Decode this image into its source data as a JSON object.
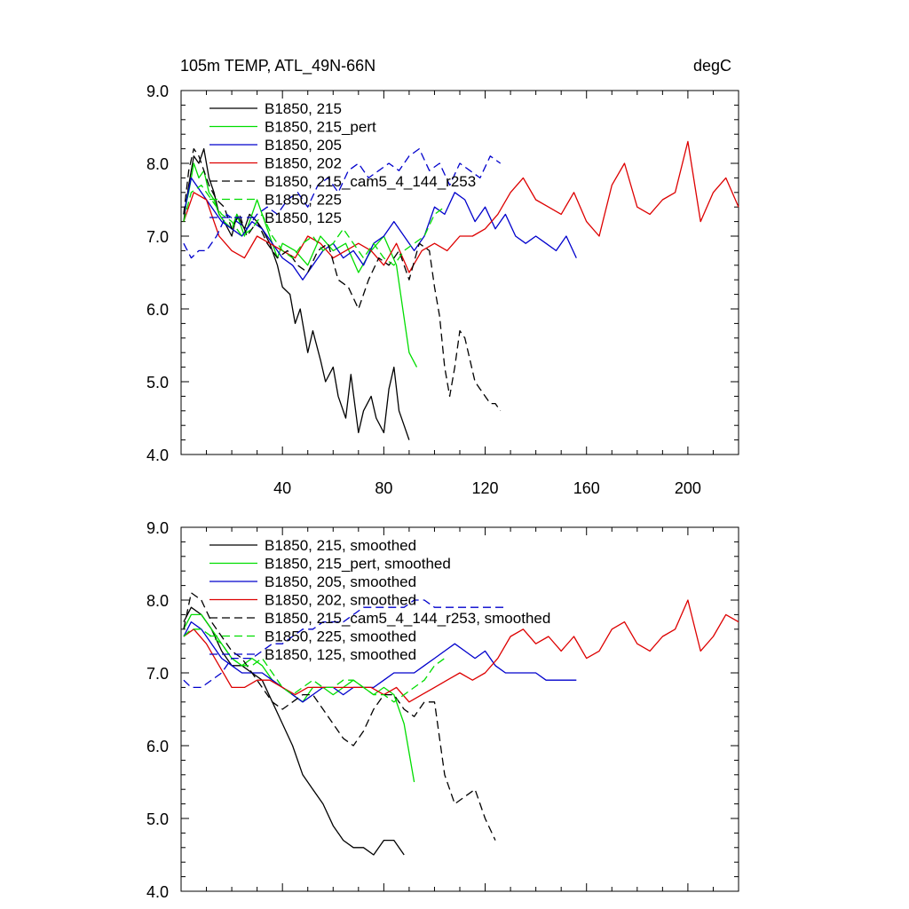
{
  "chart_data": [
    {
      "type": "line",
      "title": "105m TEMP, ATL_49N-66N",
      "units": "degC",
      "xlim": [
        0,
        220
      ],
      "ylim": [
        4.0,
        9.0
      ],
      "x_tick_labels": [
        "40",
        "80",
        "120",
        "160",
        "200"
      ],
      "y_tick_labels": [
        "4.0",
        "5.0",
        "6.0",
        "7.0",
        "8.0",
        "9.0"
      ],
      "series": [
        {
          "name": "B1850, 215",
          "color": "#000000",
          "dash": "solid",
          "x": [
            1,
            3,
            5,
            7,
            9,
            11,
            13,
            15,
            17,
            20,
            22,
            25,
            27,
            30,
            32,
            35,
            38,
            40,
            43,
            45,
            47,
            50,
            52,
            55,
            57,
            60,
            62,
            65,
            67,
            70,
            72,
            75,
            77,
            80,
            82,
            84,
            86,
            88,
            90
          ],
          "y": [
            7.2,
            7.7,
            8.1,
            8.0,
            8.2,
            7.8,
            7.6,
            7.3,
            7.2,
            7.0,
            7.3,
            7.1,
            7.3,
            7.2,
            7.1,
            6.9,
            6.6,
            6.3,
            6.2,
            5.8,
            6.0,
            5.4,
            5.7,
            5.3,
            5.0,
            5.2,
            4.8,
            4.5,
            5.1,
            4.3,
            4.6,
            4.8,
            4.5,
            4.3,
            4.9,
            5.2,
            4.6,
            4.4,
            4.2
          ]
        },
        {
          "name": "B1850, 215_pert",
          "color": "#00dd00",
          "dash": "solid",
          "x": [
            1,
            3,
            5,
            7,
            9,
            11,
            13,
            15,
            17,
            20,
            22,
            25,
            27,
            30,
            32,
            35,
            38,
            40,
            45,
            50,
            55,
            60,
            65,
            70,
            75,
            80,
            85,
            90,
            93
          ],
          "y": [
            7.3,
            7.6,
            8.0,
            7.8,
            7.9,
            7.6,
            7.5,
            7.3,
            7.2,
            7.1,
            7.3,
            7.0,
            7.2,
            7.5,
            7.3,
            7.0,
            6.7,
            6.9,
            6.8,
            6.6,
            7.0,
            6.8,
            6.9,
            6.5,
            6.8,
            7.0,
            6.6,
            5.4,
            5.2
          ]
        },
        {
          "name": "B1850, 205",
          "color": "#0000cc",
          "dash": "solid",
          "x": [
            1,
            4,
            8,
            12,
            16,
            20,
            24,
            28,
            32,
            36,
            40,
            44,
            48,
            52,
            56,
            60,
            64,
            68,
            72,
            76,
            80,
            84,
            88,
            92,
            96,
            100,
            104,
            108,
            112,
            116,
            120,
            124,
            128,
            132,
            136,
            140,
            144,
            148,
            152,
            156
          ],
          "y": [
            7.3,
            7.8,
            7.6,
            7.4,
            7.2,
            7.1,
            7.0,
            7.2,
            7.1,
            6.9,
            6.7,
            6.6,
            6.4,
            6.6,
            6.8,
            6.9,
            6.7,
            6.8,
            6.6,
            6.9,
            7.0,
            7.2,
            7.0,
            6.8,
            7.0,
            7.4,
            7.3,
            7.6,
            7.5,
            7.2,
            7.4,
            7.1,
            7.3,
            7.0,
            6.9,
            7.0,
            6.9,
            6.8,
            7.0,
            6.7
          ]
        },
        {
          "name": "B1850, 202",
          "color": "#dd0000",
          "dash": "solid",
          "x": [
            1,
            5,
            10,
            15,
            20,
            25,
            30,
            35,
            40,
            45,
            50,
            55,
            60,
            65,
            70,
            75,
            80,
            85,
            90,
            95,
            100,
            105,
            110,
            115,
            120,
            125,
            130,
            135,
            140,
            145,
            150,
            155,
            160,
            165,
            170,
            175,
            180,
            185,
            190,
            195,
            200,
            205,
            210,
            215,
            220
          ],
          "y": [
            7.2,
            7.6,
            7.5,
            7.0,
            6.8,
            6.7,
            7.0,
            6.9,
            6.8,
            6.7,
            7.0,
            6.9,
            6.7,
            6.8,
            6.9,
            6.8,
            6.6,
            6.9,
            6.5,
            6.8,
            6.9,
            6.8,
            7.0,
            7.0,
            7.1,
            7.3,
            7.6,
            7.8,
            7.5,
            7.4,
            7.3,
            7.6,
            7.2,
            7.0,
            7.7,
            8.0,
            7.4,
            7.3,
            7.5,
            7.6,
            8.3,
            7.2,
            7.6,
            7.8,
            7.4
          ]
        },
        {
          "name": "B1850, 215_cam5_4_144_r253",
          "color": "#000000",
          "dash": "dashed",
          "x": [
            1,
            3,
            5,
            7,
            9,
            11,
            14,
            17,
            20,
            23,
            26,
            30,
            34,
            38,
            42,
            46,
            50,
            54,
            58,
            62,
            66,
            70,
            74,
            78,
            82,
            86,
            90,
            94,
            98,
            100,
            102,
            104,
            106,
            108,
            110,
            112,
            114,
            116,
            118,
            120,
            122,
            124,
            126
          ],
          "y": [
            7.3,
            7.9,
            8.2,
            8.1,
            7.9,
            7.7,
            7.5,
            7.4,
            7.1,
            7.3,
            7.0,
            7.2,
            6.9,
            6.7,
            6.8,
            6.6,
            6.5,
            6.8,
            6.9,
            6.4,
            6.3,
            6.0,
            6.4,
            6.7,
            6.6,
            6.8,
            6.4,
            6.9,
            6.8,
            6.3,
            5.9,
            5.2,
            4.8,
            5.2,
            5.7,
            5.6,
            5.3,
            5.0,
            4.9,
            4.8,
            4.7,
            4.7,
            4.6
          ]
        },
        {
          "name": "B1850, 225",
          "color": "#00dd00",
          "dash": "dashed",
          "x": [
            1,
            4,
            8,
            12,
            16,
            20,
            24,
            28,
            32,
            36,
            40,
            44,
            48,
            52,
            56,
            60,
            64,
            68,
            72,
            76,
            80,
            84,
            88,
            92,
            96,
            100,
            104
          ],
          "y": [
            7.2,
            7.6,
            7.7,
            7.5,
            7.3,
            7.2,
            7.0,
            7.1,
            7.3,
            7.0,
            6.8,
            6.7,
            6.9,
            7.0,
            6.8,
            6.9,
            7.1,
            6.9,
            6.7,
            6.9,
            6.7,
            6.6,
            6.8,
            6.9,
            7.0,
            7.3,
            7.4
          ]
        },
        {
          "name": "B1850, 125",
          "color": "#0000cc",
          "dash": "dashed",
          "x": [
            1,
            4,
            7,
            10,
            14,
            18,
            22,
            26,
            30,
            34,
            38,
            42,
            46,
            50,
            54,
            58,
            62,
            66,
            70,
            74,
            78,
            82,
            86,
            90,
            94,
            98,
            102,
            106,
            110,
            114,
            118,
            122,
            126
          ],
          "y": [
            6.9,
            6.7,
            6.8,
            6.8,
            7.0,
            7.3,
            7.2,
            7.1,
            7.3,
            7.4,
            7.3,
            7.5,
            7.6,
            7.4,
            7.7,
            7.8,
            7.6,
            7.9,
            8.0,
            7.8,
            7.9,
            8.0,
            7.9,
            8.1,
            8.2,
            7.9,
            8.0,
            7.7,
            8.0,
            7.9,
            7.8,
            8.1,
            8.0
          ]
        }
      ]
    },
    {
      "type": "line",
      "xlim": [
        0,
        220
      ],
      "ylim": [
        4.0,
        9.0
      ],
      "y_tick_labels": [
        "4.0",
        "5.0",
        "6.0",
        "7.0",
        "8.0",
        "9.0"
      ],
      "series": [
        {
          "name": "B1850, 215, smoothed",
          "color": "#000000",
          "dash": "solid",
          "x": [
            1,
            4,
            8,
            12,
            16,
            20,
            24,
            28,
            32,
            36,
            40,
            44,
            48,
            52,
            56,
            60,
            64,
            68,
            72,
            76,
            80,
            84,
            88
          ],
          "y": [
            7.7,
            7.9,
            7.8,
            7.6,
            7.3,
            7.1,
            7.1,
            7.0,
            6.9,
            6.6,
            6.3,
            6.0,
            5.6,
            5.4,
            5.2,
            4.9,
            4.7,
            4.6,
            4.6,
            4.5,
            4.7,
            4.7,
            4.5
          ]
        },
        {
          "name": "B1850, 215_pert, smoothed",
          "color": "#00dd00",
          "dash": "solid",
          "x": [
            1,
            4,
            8,
            12,
            16,
            20,
            24,
            28,
            32,
            36,
            40,
            44,
            48,
            52,
            56,
            60,
            64,
            68,
            72,
            76,
            80,
            84,
            88,
            92
          ],
          "y": [
            7.6,
            7.8,
            7.8,
            7.6,
            7.4,
            7.2,
            7.1,
            7.2,
            7.1,
            6.9,
            6.8,
            6.7,
            6.6,
            6.8,
            6.8,
            6.7,
            6.8,
            6.9,
            6.8,
            6.7,
            6.8,
            6.7,
            6.3,
            5.5
          ]
        },
        {
          "name": "B1850, 205, smoothed",
          "color": "#0000cc",
          "dash": "solid",
          "x": [
            1,
            4,
            8,
            12,
            16,
            20,
            24,
            28,
            32,
            36,
            40,
            44,
            48,
            52,
            56,
            60,
            64,
            68,
            72,
            76,
            80,
            84,
            88,
            92,
            96,
            100,
            104,
            108,
            112,
            116,
            120,
            124,
            128,
            132,
            136,
            140,
            144,
            148,
            152,
            156
          ],
          "y": [
            7.5,
            7.7,
            7.6,
            7.4,
            7.2,
            7.1,
            7.0,
            7.0,
            7.0,
            6.9,
            6.8,
            6.7,
            6.6,
            6.7,
            6.8,
            6.8,
            6.7,
            6.8,
            6.8,
            6.8,
            6.9,
            7.0,
            7.0,
            7.0,
            7.1,
            7.2,
            7.3,
            7.4,
            7.3,
            7.2,
            7.3,
            7.1,
            7.0,
            7.0,
            7.0,
            7.0,
            6.9,
            6.9,
            6.9,
            6.9
          ]
        },
        {
          "name": "B1850, 202, smoothed",
          "color": "#dd0000",
          "dash": "solid",
          "x": [
            1,
            5,
            10,
            15,
            20,
            25,
            30,
            35,
            40,
            45,
            50,
            55,
            60,
            65,
            70,
            75,
            80,
            85,
            90,
            95,
            100,
            105,
            110,
            115,
            120,
            125,
            130,
            135,
            140,
            145,
            150,
            155,
            160,
            165,
            170,
            175,
            180,
            185,
            190,
            195,
            200,
            205,
            210,
            215,
            220
          ],
          "y": [
            7.5,
            7.6,
            7.4,
            7.1,
            6.8,
            6.8,
            6.9,
            6.9,
            6.8,
            6.7,
            6.8,
            6.8,
            6.8,
            6.8,
            6.8,
            6.8,
            6.7,
            6.8,
            6.6,
            6.7,
            6.8,
            6.9,
            7.0,
            6.9,
            7.0,
            7.2,
            7.5,
            7.6,
            7.4,
            7.5,
            7.3,
            7.5,
            7.2,
            7.3,
            7.6,
            7.7,
            7.4,
            7.3,
            7.5,
            7.6,
            8.0,
            7.3,
            7.5,
            7.8,
            7.7
          ]
        },
        {
          "name": "B1850, 215_cam5_4_144_r253, smoothed",
          "color": "#000000",
          "dash": "dashed",
          "x": [
            1,
            4,
            8,
            12,
            16,
            20,
            24,
            28,
            32,
            36,
            40,
            44,
            48,
            52,
            56,
            60,
            64,
            68,
            72,
            76,
            80,
            84,
            88,
            92,
            96,
            100,
            104,
            108,
            112,
            116,
            120,
            124
          ],
          "y": [
            7.6,
            8.1,
            8.0,
            7.7,
            7.5,
            7.3,
            7.2,
            7.0,
            6.8,
            6.6,
            6.5,
            6.6,
            6.7,
            6.7,
            6.5,
            6.3,
            6.1,
            6.0,
            6.2,
            6.5,
            6.7,
            6.7,
            6.5,
            6.4,
            6.6,
            6.6,
            5.6,
            5.2,
            5.3,
            5.4,
            5.0,
            4.7
          ]
        },
        {
          "name": "B1850, 225, smoothed",
          "color": "#00dd00",
          "dash": "dashed",
          "x": [
            1,
            4,
            8,
            12,
            16,
            20,
            24,
            28,
            32,
            36,
            40,
            44,
            48,
            52,
            56,
            60,
            64,
            68,
            72,
            76,
            80,
            84,
            88,
            92,
            96,
            100,
            104
          ],
          "y": [
            7.5,
            7.6,
            7.6,
            7.5,
            7.4,
            7.2,
            7.1,
            7.1,
            7.2,
            7.0,
            6.8,
            6.7,
            6.8,
            6.9,
            6.8,
            6.8,
            6.9,
            6.9,
            6.8,
            6.7,
            6.7,
            6.6,
            6.7,
            6.8,
            6.9,
            7.1,
            7.2
          ]
        },
        {
          "name": "B1850, 125, smoothed",
          "color": "#0000cc",
          "dash": "dashed",
          "x": [
            1,
            4,
            8,
            12,
            16,
            20,
            24,
            28,
            32,
            36,
            40,
            44,
            48,
            52,
            56,
            60,
            64,
            68,
            72,
            76,
            80,
            84,
            88,
            92,
            96,
            100,
            104,
            108,
            112,
            116,
            120,
            124,
            128
          ],
          "y": [
            6.9,
            6.8,
            6.8,
            6.9,
            7.0,
            7.2,
            7.2,
            7.2,
            7.3,
            7.4,
            7.4,
            7.5,
            7.6,
            7.6,
            7.7,
            7.7,
            7.7,
            7.8,
            7.9,
            7.9,
            7.9,
            7.9,
            7.9,
            8.0,
            8.0,
            7.9,
            7.9,
            7.9,
            7.9,
            7.9,
            7.9,
            7.9,
            7.9
          ]
        }
      ]
    }
  ]
}
